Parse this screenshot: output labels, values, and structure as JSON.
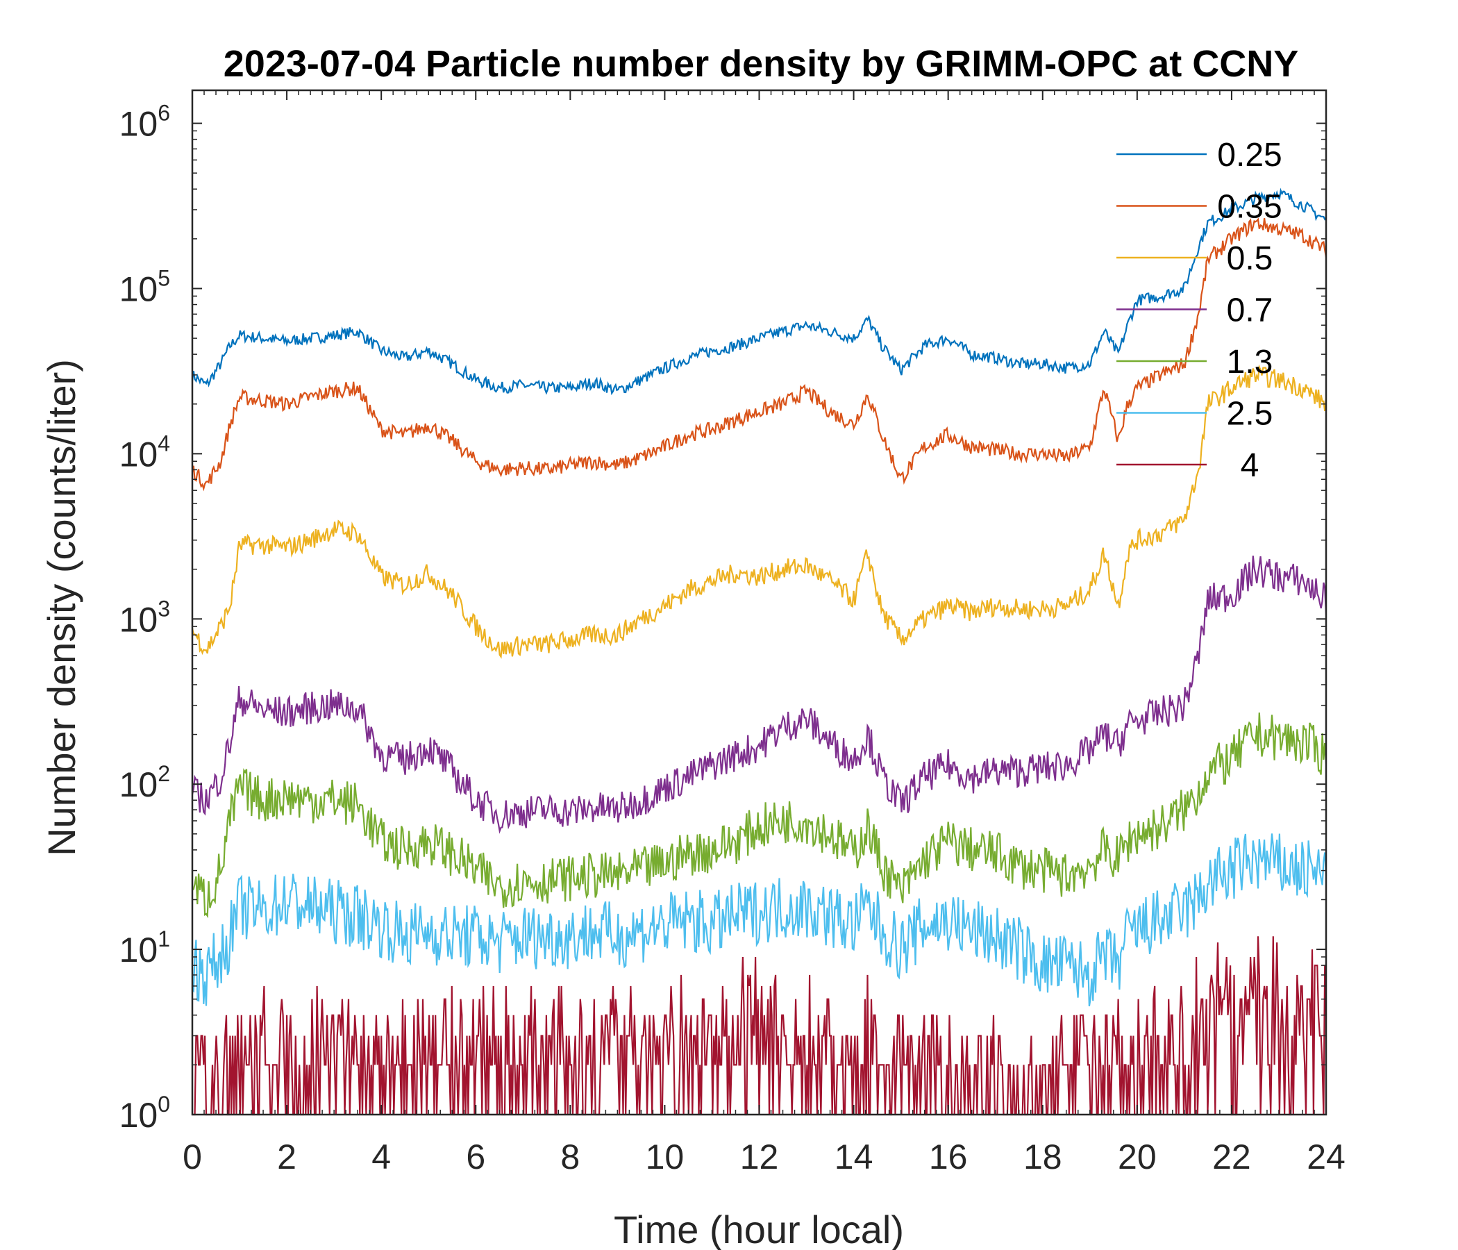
{
  "chart_data": {
    "type": "line",
    "title": "2023-07-04 Particle number density by GRIMM-OPC at CCNY",
    "xlabel": "Time (hour local)",
    "ylabel": "Number density (counts/liter)",
    "xlim": [
      0,
      24
    ],
    "ylim_log10": [
      0,
      6.2
    ],
    "y_scale": "log",
    "x_ticks": [
      0,
      2,
      4,
      6,
      8,
      10,
      12,
      14,
      16,
      18,
      20,
      22,
      24
    ],
    "x_tick_labels": [
      "0",
      "2",
      "4",
      "6",
      "8",
      "10",
      "12",
      "14",
      "16",
      "18",
      "20",
      "22",
      "24"
    ],
    "y_ticks": [
      {
        "base": "10",
        "exp": "0"
      },
      {
        "base": "10",
        "exp": "1"
      },
      {
        "base": "10",
        "exp": "2"
      },
      {
        "base": "10",
        "exp": "3"
      },
      {
        "base": "10",
        "exp": "4"
      },
      {
        "base": "10",
        "exp": "5"
      },
      {
        "base": "10",
        "exp": "6"
      }
    ],
    "legend_position": "top-right",
    "series": [
      {
        "name": "0.25",
        "color": "#0072BD",
        "x": [
          0,
          0.3,
          0.6,
          0.8,
          1,
          1.5,
          2,
          2.5,
          3,
          3.5,
          4,
          4.5,
          5,
          5.5,
          6,
          6.5,
          7,
          7.5,
          8,
          8.5,
          9,
          9.5,
          10,
          10.5,
          11,
          11.5,
          12,
          12.5,
          13,
          13.5,
          14,
          14.3,
          14.6,
          15,
          15.5,
          16,
          16.5,
          17,
          17.5,
          18,
          18.5,
          19,
          19.3,
          19.6,
          19.8,
          20,
          20.5,
          21,
          21.3,
          21.5,
          22,
          22.5,
          23,
          23.5,
          24
        ],
        "y": [
          30000,
          26000,
          35000,
          45000,
          52000,
          50000,
          48000,
          50000,
          52000,
          55000,
          42000,
          38000,
          42000,
          35000,
          28000,
          25000,
          26000,
          25000,
          25000,
          27000,
          24000,
          28000,
          33000,
          38000,
          42000,
          45000,
          50000,
          55000,
          60000,
          55000,
          50000,
          65000,
          45000,
          32000,
          45000,
          50000,
          40000,
          38000,
          35000,
          35000,
          33000,
          35000,
          55000,
          40000,
          60000,
          85000,
          90000,
          100000,
          180000,
          250000,
          300000,
          350000,
          380000,
          320000,
          260000
        ]
      },
      {
        "name": "0.35",
        "color": "#D95319",
        "x": [
          0,
          0.3,
          0.6,
          0.8,
          1,
          1.5,
          2,
          2.5,
          3,
          3.5,
          4,
          4.5,
          5,
          5.5,
          6,
          6.5,
          7,
          7.5,
          8,
          8.5,
          9,
          9.5,
          10,
          10.5,
          11,
          11.5,
          12,
          12.5,
          13,
          13.5,
          14,
          14.3,
          14.6,
          15,
          15.5,
          16,
          16.5,
          17,
          17.5,
          18,
          18.5,
          19,
          19.3,
          19.6,
          19.8,
          20,
          20.5,
          21,
          21.3,
          21.5,
          22,
          22.5,
          23,
          23.5,
          24
        ],
        "y": [
          8000,
          6500,
          9000,
          15000,
          22000,
          21000,
          20000,
          22000,
          24000,
          25000,
          14000,
          13000,
          15000,
          12000,
          9000,
          8000,
          8200,
          8000,
          8500,
          9000,
          8500,
          9500,
          11000,
          13000,
          14000,
          16000,
          18000,
          20000,
          24000,
          18000,
          15000,
          23000,
          13000,
          7000,
          11000,
          13000,
          11000,
          10500,
          10000,
          10000,
          9500,
          11000,
          25000,
          12000,
          20000,
          25000,
          30000,
          35000,
          70000,
          150000,
          200000,
          250000,
          230000,
          210000,
          170000
        ]
      },
      {
        "name": "0.5",
        "color": "#EDB120",
        "x": [
          0,
          0.3,
          0.6,
          0.8,
          1,
          1.5,
          2,
          2.5,
          3,
          3.5,
          4,
          4.5,
          5,
          5.5,
          6,
          6.5,
          7,
          7.5,
          8,
          8.5,
          9,
          9.5,
          10,
          10.5,
          11,
          11.5,
          12,
          12.5,
          13,
          13.5,
          14,
          14.3,
          14.6,
          15,
          15.5,
          16,
          16.5,
          17,
          17.5,
          18,
          18.5,
          19,
          19.3,
          19.6,
          19.8,
          20,
          20.5,
          21,
          21.3,
          21.5,
          22,
          22.5,
          23,
          23.5,
          24
        ],
        "y": [
          850,
          650,
          900,
          1200,
          2800,
          2800,
          2700,
          3000,
          3500,
          3300,
          1800,
          1600,
          1900,
          1400,
          900,
          650,
          700,
          700,
          750,
          800,
          800,
          1000,
          1200,
          1500,
          1700,
          1900,
          1800,
          2000,
          2100,
          1700,
          1300,
          2500,
          1100,
          750,
          1000,
          1200,
          1100,
          1200,
          1150,
          1150,
          1200,
          1500,
          2500,
          1200,
          2500,
          3000,
          3300,
          4000,
          8000,
          20000,
          25000,
          30000,
          28000,
          25000,
          20000
        ]
      },
      {
        "name": "0.7",
        "color": "#7E2F8E",
        "x": [
          0,
          0.3,
          0.6,
          0.8,
          1,
          1.5,
          2,
          2.5,
          3,
          3.5,
          4,
          4.5,
          5,
          5.5,
          6,
          6.5,
          7,
          7.5,
          8,
          8.5,
          9,
          9.5,
          10,
          10.5,
          11,
          11.5,
          12,
          12.5,
          13,
          13.5,
          14,
          14.3,
          14.6,
          15,
          15.5,
          16,
          16.5,
          17,
          17.5,
          18,
          18.5,
          19,
          19.3,
          19.6,
          19.8,
          20,
          20.5,
          21,
          21.3,
          21.5,
          22,
          22.5,
          23,
          23.5,
          24
        ],
        "y": [
          90,
          80,
          110,
          180,
          330,
          280,
          270,
          290,
          300,
          290,
          150,
          140,
          170,
          120,
          80,
          65,
          68,
          70,
          68,
          72,
          70,
          80,
          95,
          110,
          130,
          150,
          170,
          220,
          250,
          180,
          140,
          200,
          110,
          75,
          110,
          130,
          110,
          120,
          120,
          125,
          130,
          160,
          200,
          170,
          230,
          240,
          270,
          300,
          600,
          1300,
          1400,
          2000,
          1800,
          1700,
          1300
        ]
      },
      {
        "name": "1.3",
        "color": "#77AC30",
        "x": [
          0,
          0.3,
          0.6,
          0.8,
          1,
          1.5,
          2,
          2.5,
          3,
          3.5,
          4,
          4.5,
          5,
          5.5,
          6,
          6.5,
          7,
          7.5,
          8,
          8.5,
          9,
          9.5,
          10,
          10.5,
          11,
          11.5,
          12,
          12.5,
          13,
          13.5,
          14,
          14.3,
          14.6,
          15,
          15.5,
          16,
          16.5,
          17,
          17.5,
          18,
          18.5,
          19,
          19.3,
          19.6,
          19.8,
          20,
          20.5,
          21,
          21.3,
          21.5,
          22,
          22.5,
          23,
          23.5,
          24
        ],
        "y": [
          25,
          20,
          30,
          60,
          95,
          80,
          85,
          80,
          80,
          75,
          45,
          40,
          45,
          38,
          30,
          24,
          26,
          26,
          27,
          28,
          28,
          30,
          33,
          38,
          40,
          45,
          55,
          60,
          60,
          50,
          38,
          55,
          32,
          22,
          35,
          45,
          40,
          38,
          32,
          30,
          28,
          32,
          40,
          35,
          45,
          50,
          55,
          70,
          90,
          120,
          140,
          200,
          190,
          180,
          150
        ]
      },
      {
        "name": "2.5",
        "color": "#4DBEEE",
        "x": [
          0,
          0.3,
          0.6,
          0.8,
          1,
          1.5,
          2,
          2.5,
          3,
          3.5,
          4,
          4.5,
          5,
          5.5,
          6,
          6.5,
          7,
          7.5,
          8,
          8.5,
          9,
          9.5,
          10,
          10.5,
          11,
          11.5,
          12,
          12.5,
          13,
          13.5,
          14,
          14.3,
          14.6,
          15,
          15.5,
          16,
          16.5,
          17,
          17.5,
          18,
          18.5,
          19,
          19.3,
          19.6,
          19.8,
          20,
          20.5,
          21,
          21.3,
          21.5,
          22,
          22.5,
          23,
          23.5,
          24
        ],
        "y": [
          8,
          7,
          9,
          12,
          18,
          17,
          20,
          18,
          17,
          16,
          14,
          12,
          13,
          12,
          12,
          11,
          12,
          12,
          12,
          13,
          12,
          13,
          14,
          15,
          14,
          16,
          17,
          18,
          18,
          16,
          14,
          18,
          13,
          10,
          14,
          15,
          13,
          12,
          10,
          8,
          8,
          7,
          9,
          8,
          12,
          13,
          15,
          17,
          20,
          25,
          30,
          35,
          32,
          30,
          28
        ]
      },
      {
        "name": "4",
        "color": "#A2142F",
        "x": [
          0,
          0.3,
          0.6,
          0.8,
          1,
          1.5,
          2,
          2.5,
          3,
          3.5,
          4,
          4.5,
          5,
          5.5,
          6,
          6.5,
          7,
          7.5,
          8,
          8.5,
          9,
          9.5,
          10,
          10.5,
          11,
          11.5,
          11.7,
          12,
          12.5,
          13,
          13.5,
          14,
          14.3,
          14.6,
          15,
          15.5,
          16,
          16.5,
          17,
          17.5,
          18,
          18.5,
          19,
          19.3,
          19.6,
          19.8,
          20,
          20.5,
          21,
          21.3,
          21.5,
          22,
          22.5,
          23,
          23.5,
          24
        ],
        "y": [
          2,
          1.5,
          2,
          2,
          2.5,
          3,
          2,
          2.5,
          3,
          2.5,
          2,
          2.5,
          2.5,
          3,
          3,
          2.5,
          2.5,
          3,
          2.5,
          3,
          3,
          2.5,
          3,
          3,
          3,
          3,
          8,
          6,
          3,
          3,
          2.5,
          2.5,
          3,
          2,
          2.5,
          2,
          2,
          1.5,
          1.8,
          1.5,
          1.5,
          2,
          2,
          2,
          2,
          1.8,
          2,
          2.5,
          3,
          4,
          5,
          6,
          5.5,
          6,
          5,
          5
        ]
      }
    ]
  }
}
